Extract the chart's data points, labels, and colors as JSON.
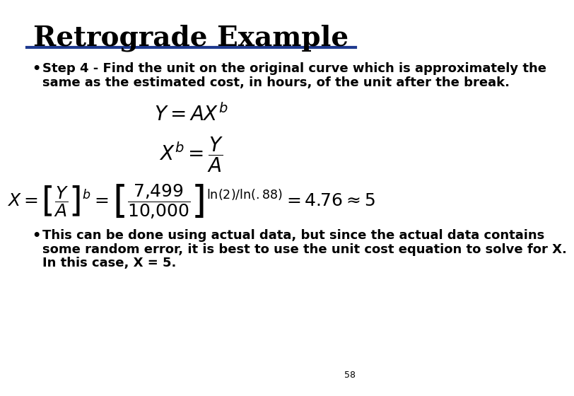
{
  "title": "Retrograde Example",
  "title_fontsize": 28,
  "title_font": "serif",
  "title_bold": true,
  "line_color": "#1F3A8F",
  "background_color": "#FFFFFF",
  "bullet1_line1": "Step 4 - Find the unit on the original curve which is approximately the",
  "bullet1_line2": "same as the estimated cost, in hours, of the unit after the break.",
  "bullet2_line1": "This can be done using actual data, but since the actual data contains",
  "bullet2_line2": "some random error, it is best to use the unit cost equation to solve for X.",
  "bullet2_line3": "In this case, X = 5.",
  "page_number": "58",
  "bullet_fontsize": 13,
  "eq_fontsize": 18
}
